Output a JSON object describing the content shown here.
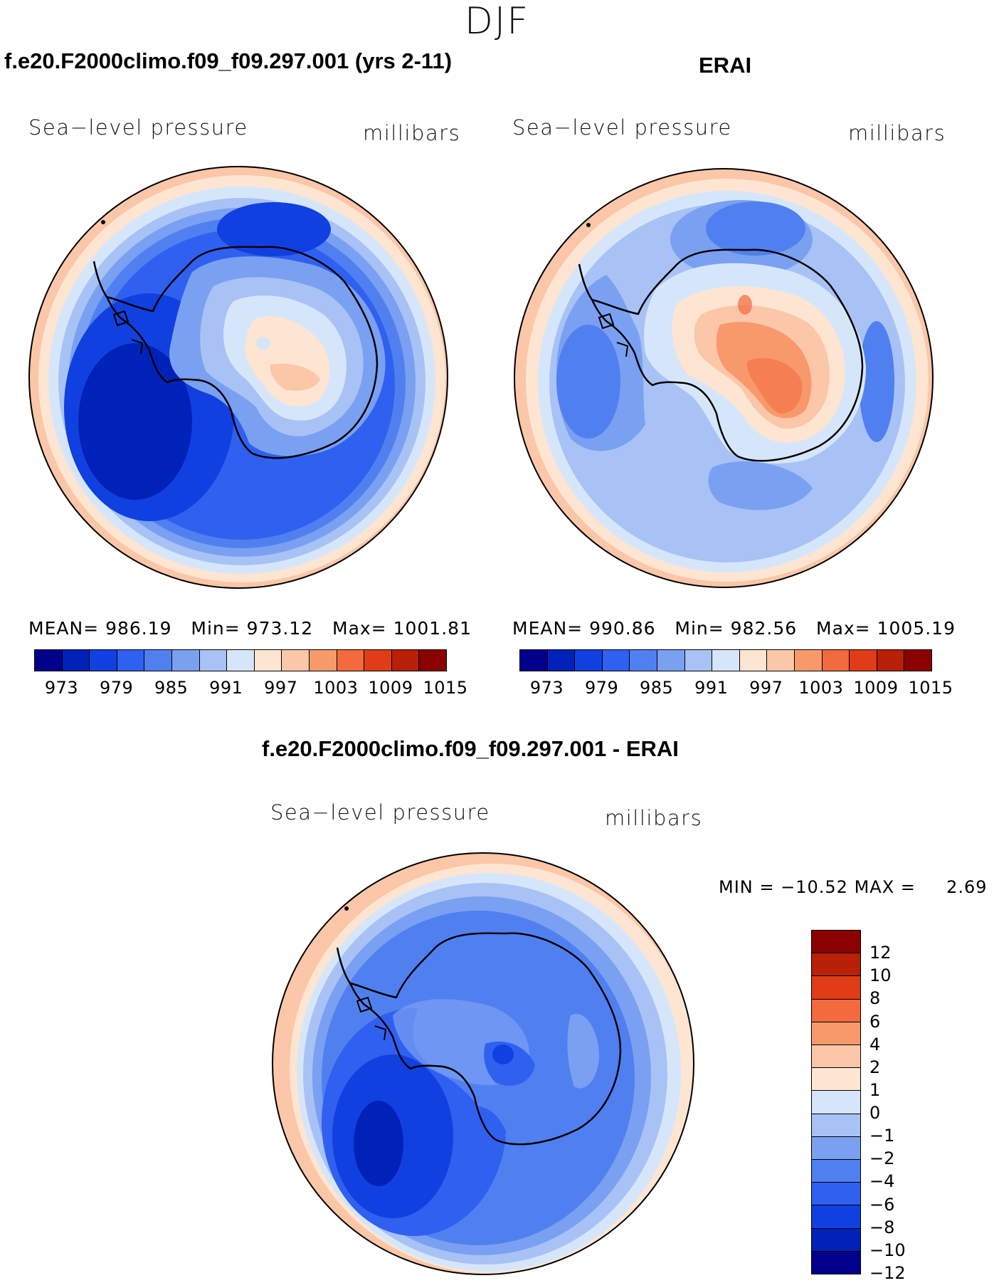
{
  "season": "DJF",
  "panels": {
    "model": {
      "title": "f.e20.F2000climo.f09_f09.297.001 (yrs 2-11)",
      "variable": "Sea−level pressure",
      "units": "millibars",
      "stats": {
        "mean_label": "MEAN=",
        "mean": "986.19",
        "min_label": "Min=",
        "min": "973.12",
        "max_label": "Max=",
        "max": "1001.81"
      }
    },
    "obs": {
      "title": "ERAI",
      "variable": "Sea−level pressure",
      "units": "millibars",
      "stats": {
        "mean_label": "MEAN=",
        "mean": "990.86",
        "min_label": "Min=",
        "min": "982.56",
        "max_label": "Max=",
        "max": "1005.19"
      }
    },
    "diff": {
      "title": "f.e20.F2000climo.f09_f09.297.001 - ERAI",
      "variable": "Sea−level pressure",
      "units": "millibars",
      "stats": {
        "min_label": "MIN =",
        "min": "−10.52",
        "max_label": "MAX =",
        "max": "2.69"
      }
    }
  },
  "colorbar_abs": {
    "colors": [
      "#00008b",
      "#0022b8",
      "#1040e0",
      "#3060f0",
      "#5080f0",
      "#7aa0f2",
      "#a8c2f5",
      "#d6e6fa",
      "#fde5d2",
      "#fcc6a8",
      "#f8996c",
      "#f26a3e",
      "#e03c18",
      "#b82008",
      "#8b0000"
    ],
    "ticks": [
      "973",
      "979",
      "985",
      "991",
      "997",
      "1003",
      "1009",
      "1015"
    ]
  },
  "colorbar_diff": {
    "colors_top_to_bottom": [
      "#8b0000",
      "#b82008",
      "#e03c18",
      "#f26a3e",
      "#f8996c",
      "#fcc6a8",
      "#fde5d2",
      "#d6e6fa",
      "#a8c2f5",
      "#7aa0f2",
      "#5080f0",
      "#3060f0",
      "#1040e0",
      "#0022b8",
      "#00008b"
    ],
    "ticks_top_to_bottom": [
      "12",
      "10",
      "8",
      "6",
      "4",
      "2",
      "1",
      "0",
      "−1",
      "−2",
      "−4",
      "−6",
      "−8",
      "−10",
      "−12"
    ]
  }
}
